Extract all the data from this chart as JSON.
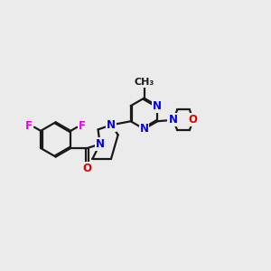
{
  "bg_color": "#ebebeb",
  "bond_color": "#1a1a1a",
  "N_color": "#0000ee",
  "O_color": "#dd0000",
  "F_color": "#ee00ee",
  "lw": 1.6,
  "fs": 8.5,
  "xlim": [
    0,
    10
  ],
  "ylim": [
    0,
    10
  ]
}
